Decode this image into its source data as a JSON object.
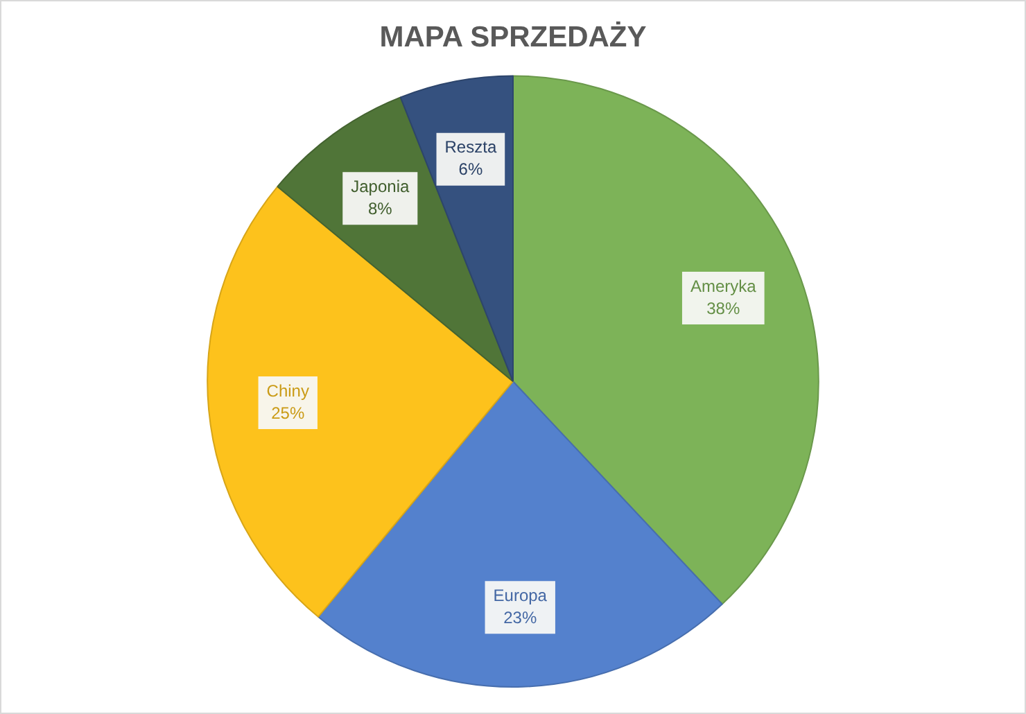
{
  "chart_data": {
    "type": "pie",
    "title": "MAPA SPRZEDAŻY",
    "categories": [
      "Ameryka",
      "Europa",
      "Chiny",
      "Japonia",
      "Reszta"
    ],
    "values": [
      38,
      23,
      25,
      8,
      6
    ],
    "value_labels": [
      "38%",
      "23%",
      "25%",
      "8%",
      "6%"
    ],
    "colors": [
      "#7db358",
      "#5481cd",
      "#fdc21c",
      "#507538",
      "#35517f"
    ]
  }
}
